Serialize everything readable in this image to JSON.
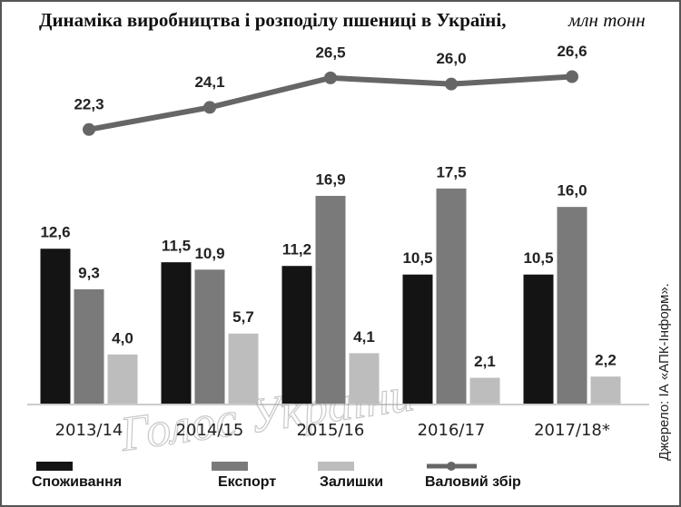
{
  "chart_data": {
    "type": "bar",
    "title": "Динаміка виробництва і розподілу пшениці в Україні,",
    "title_unit": "млн тонн",
    "source": "Джерело: ІА «АПК-Інформ».",
    "watermark": "Голос України",
    "categories": [
      "2013/14",
      "2014/15",
      "2015/16",
      "2016/17",
      "2017/18*"
    ],
    "ylim": [
      0,
      29
    ],
    "series": [
      {
        "name": "Споживання",
        "type": "bar",
        "color": "#141414",
        "values": [
          12.6,
          11.5,
          11.2,
          10.5,
          10.5
        ],
        "value_labels": [
          "12,6",
          "11,5",
          "11,2",
          "10,5",
          "10,5"
        ]
      },
      {
        "name": "Експорт",
        "type": "bar",
        "color": "#7a7a7a",
        "values": [
          9.3,
          10.9,
          16.9,
          17.5,
          16.0
        ],
        "value_labels": [
          "9,3",
          "10,9",
          "16,9",
          "17,5",
          "16,0"
        ]
      },
      {
        "name": "Залишки",
        "type": "bar",
        "color": "#bdbdbd",
        "values": [
          4.0,
          5.7,
          4.1,
          2.1,
          2.2
        ],
        "value_labels": [
          "4,0",
          "5,7",
          "4,1",
          "2,1",
          "2,2"
        ]
      },
      {
        "name": "Валовий збір",
        "type": "line",
        "color": "#666666",
        "values": [
          22.3,
          24.1,
          26.5,
          26.0,
          26.6
        ],
        "value_labels": [
          "22,3",
          "24,1",
          "26,5",
          "26,0",
          "26,6"
        ]
      }
    ]
  }
}
